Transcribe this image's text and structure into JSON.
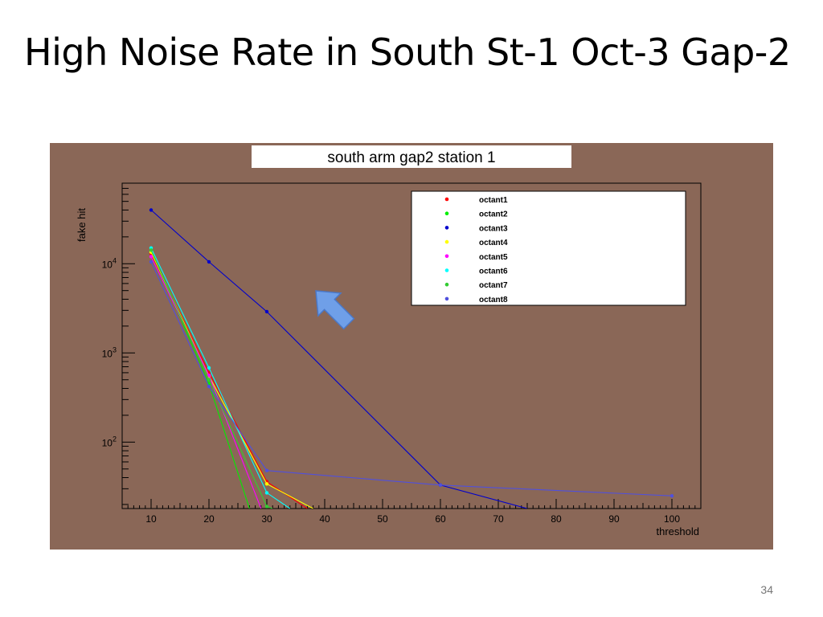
{
  "slide": {
    "title": "High Noise Rate in South St-1 Oct-3 Gap-2",
    "page_number": "34"
  },
  "chart_data": {
    "type": "line",
    "title": "south arm gap2 station 1",
    "xlabel": "threshold",
    "ylabel": "fake hit",
    "y_scale": "log",
    "xlim": [
      5,
      105
    ],
    "ylim": [
      18,
      80000
    ],
    "x_ticks": [
      10,
      20,
      30,
      40,
      50,
      60,
      70,
      80,
      90,
      100
    ],
    "y_ticks": [
      {
        "value": 100,
        "base": "10",
        "exp": "2"
      },
      {
        "value": 1000,
        "base": "10",
        "exp": "3"
      },
      {
        "value": 10000,
        "base": "10",
        "exp": "4"
      }
    ],
    "legend_position": "top-right",
    "grid": false,
    "background": "#8a6757",
    "annotation": {
      "type": "arrow",
      "color": "#6f9fe8",
      "points_to": "octant3"
    },
    "series": [
      {
        "name": "octant1",
        "color": "#ff0000",
        "points": [
          [
            10,
            13000
          ],
          [
            20,
            600
          ],
          [
            30,
            36
          ],
          [
            37,
            18
          ]
        ]
      },
      {
        "name": "octant2",
        "color": "#00ee00",
        "points": [
          [
            10,
            14000
          ],
          [
            20,
            450
          ],
          [
            27,
            18
          ]
        ]
      },
      {
        "name": "octant3",
        "color": "#0000cc",
        "points": [
          [
            10,
            40000
          ],
          [
            20,
            10500
          ],
          [
            30,
            2900
          ],
          [
            60,
            33
          ],
          [
            75,
            18
          ]
        ]
      },
      {
        "name": "octant4",
        "color": "#ffff00",
        "points": [
          [
            10,
            13500
          ],
          [
            20,
            550
          ],
          [
            30,
            34
          ],
          [
            38,
            18
          ]
        ]
      },
      {
        "name": "octant5",
        "color": "#ff00ff",
        "points": [
          [
            10,
            12000
          ],
          [
            20,
            560
          ],
          [
            29,
            18
          ]
        ]
      },
      {
        "name": "octant6",
        "color": "#00ffff",
        "points": [
          [
            10,
            15000
          ],
          [
            20,
            680
          ],
          [
            30,
            27
          ],
          [
            34,
            18
          ]
        ]
      },
      {
        "name": "octant7",
        "color": "#33cc33",
        "points": [
          [
            10,
            14200
          ],
          [
            20,
            500
          ],
          [
            30,
            19
          ],
          [
            31,
            18
          ]
        ]
      },
      {
        "name": "octant8",
        "color": "#5050dd",
        "points": [
          [
            10,
            10500
          ],
          [
            20,
            420
          ],
          [
            30,
            48
          ],
          [
            60,
            33
          ],
          [
            100,
            25
          ]
        ]
      }
    ]
  }
}
